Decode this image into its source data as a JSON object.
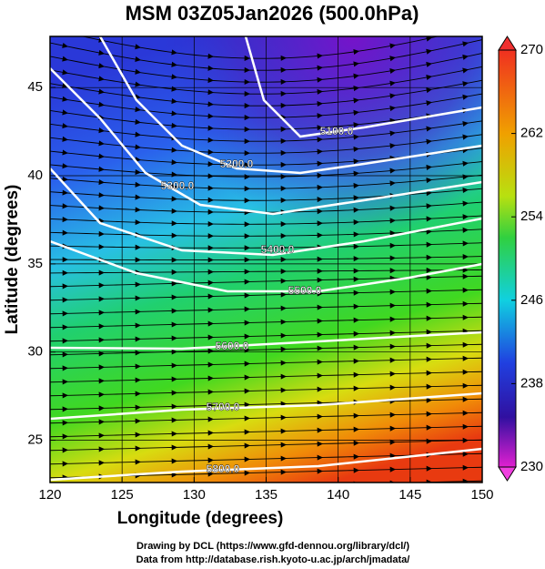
{
  "title": "MSM 03Z05Jan2026 (500.0hPa)",
  "map": {
    "x_axis": {
      "label": "Longitude (degrees)",
      "lim": [
        120,
        150
      ],
      "ticks": [
        120,
        125,
        130,
        135,
        140,
        145,
        150
      ]
    },
    "y_axis": {
      "label": "Latitude  (degrees)",
      "lim": [
        22.6,
        47.9
      ],
      "ticks": [
        25,
        30,
        35,
        40,
        45
      ]
    },
    "contours": [
      {
        "value": 5100,
        "label": "5100.0"
      },
      {
        "value": 5200,
        "label": "5200.0"
      },
      {
        "value": 5300,
        "label": "5300.0"
      },
      {
        "value": 5400,
        "label": "5400.0"
      },
      {
        "value": 5500,
        "label": "5500.0"
      },
      {
        "value": 5600,
        "label": "5600.0"
      },
      {
        "value": 5700,
        "label": "5700.0"
      },
      {
        "value": 5800,
        "label": "5800.0"
      }
    ],
    "colorbar": {
      "lim": [
        230,
        270
      ],
      "ticks": [
        230,
        238,
        246,
        254,
        262,
        270
      ]
    }
  },
  "footer": [
    "Drawing by DCL (https://www.gfd-dennou.org/library/dcl/)",
    "Data from http://database.rish.kyoto-u.ac.jp/arch/jmadata/"
  ]
}
